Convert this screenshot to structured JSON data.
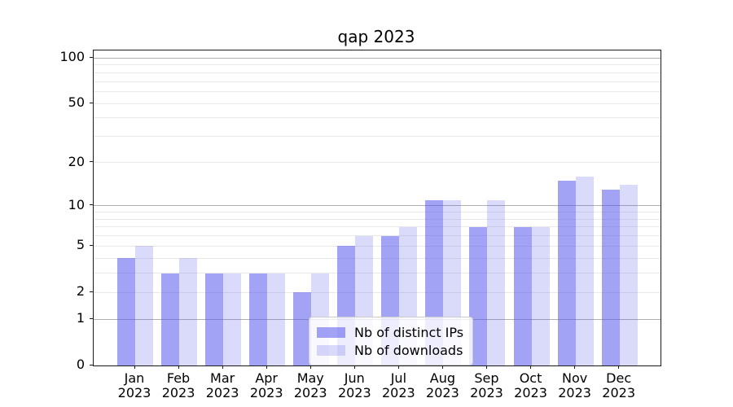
{
  "figure_title": "qap 2023",
  "chart_data": {
    "type": "bar",
    "title": "qap 2023",
    "categories": [
      "Jan 2023",
      "Feb 2023",
      "Mar 2023",
      "Apr 2023",
      "May 2023",
      "Jun 2023",
      "Jul 2023",
      "Aug 2023",
      "Sep 2023",
      "Oct 2023",
      "Nov 2023",
      "Dec 2023"
    ],
    "series": [
      {
        "name": "Nb of distinct IPs",
        "values": [
          4,
          3,
          3,
          3,
          2,
          5,
          6,
          11,
          7,
          7,
          15,
          13
        ],
        "color": "rgba(88,88,238,0.55)"
      },
      {
        "name": "Nb of downloads",
        "values": [
          5,
          4,
          3,
          3,
          3,
          6,
          7,
          11,
          11,
          7,
          16,
          14
        ],
        "color": "rgba(88,88,238,0.22)"
      }
    ],
    "xlabel": "",
    "ylabel": "",
    "yscale": "log10(value+1)",
    "ylim": [
      0,
      112
    ],
    "yticks": [
      0,
      1,
      2,
      5,
      10,
      20,
      50,
      100
    ],
    "major_gridlines": [
      1,
      10,
      100
    ],
    "minor_gridlines": [
      2,
      3,
      4,
      5,
      6,
      7,
      8,
      9,
      20,
      30,
      40,
      50,
      60,
      70,
      80,
      90
    ],
    "grid": true,
    "legend_position": "lower center"
  },
  "colors": {
    "major_grid": "#b0b0b0",
    "minor_grid": "#e9e9e9",
    "spine": "#1a1a1a",
    "tick_label": "#000000",
    "legend_border": "#cccccc",
    "legend_bg": "rgba(255,255,255,0.8)"
  }
}
